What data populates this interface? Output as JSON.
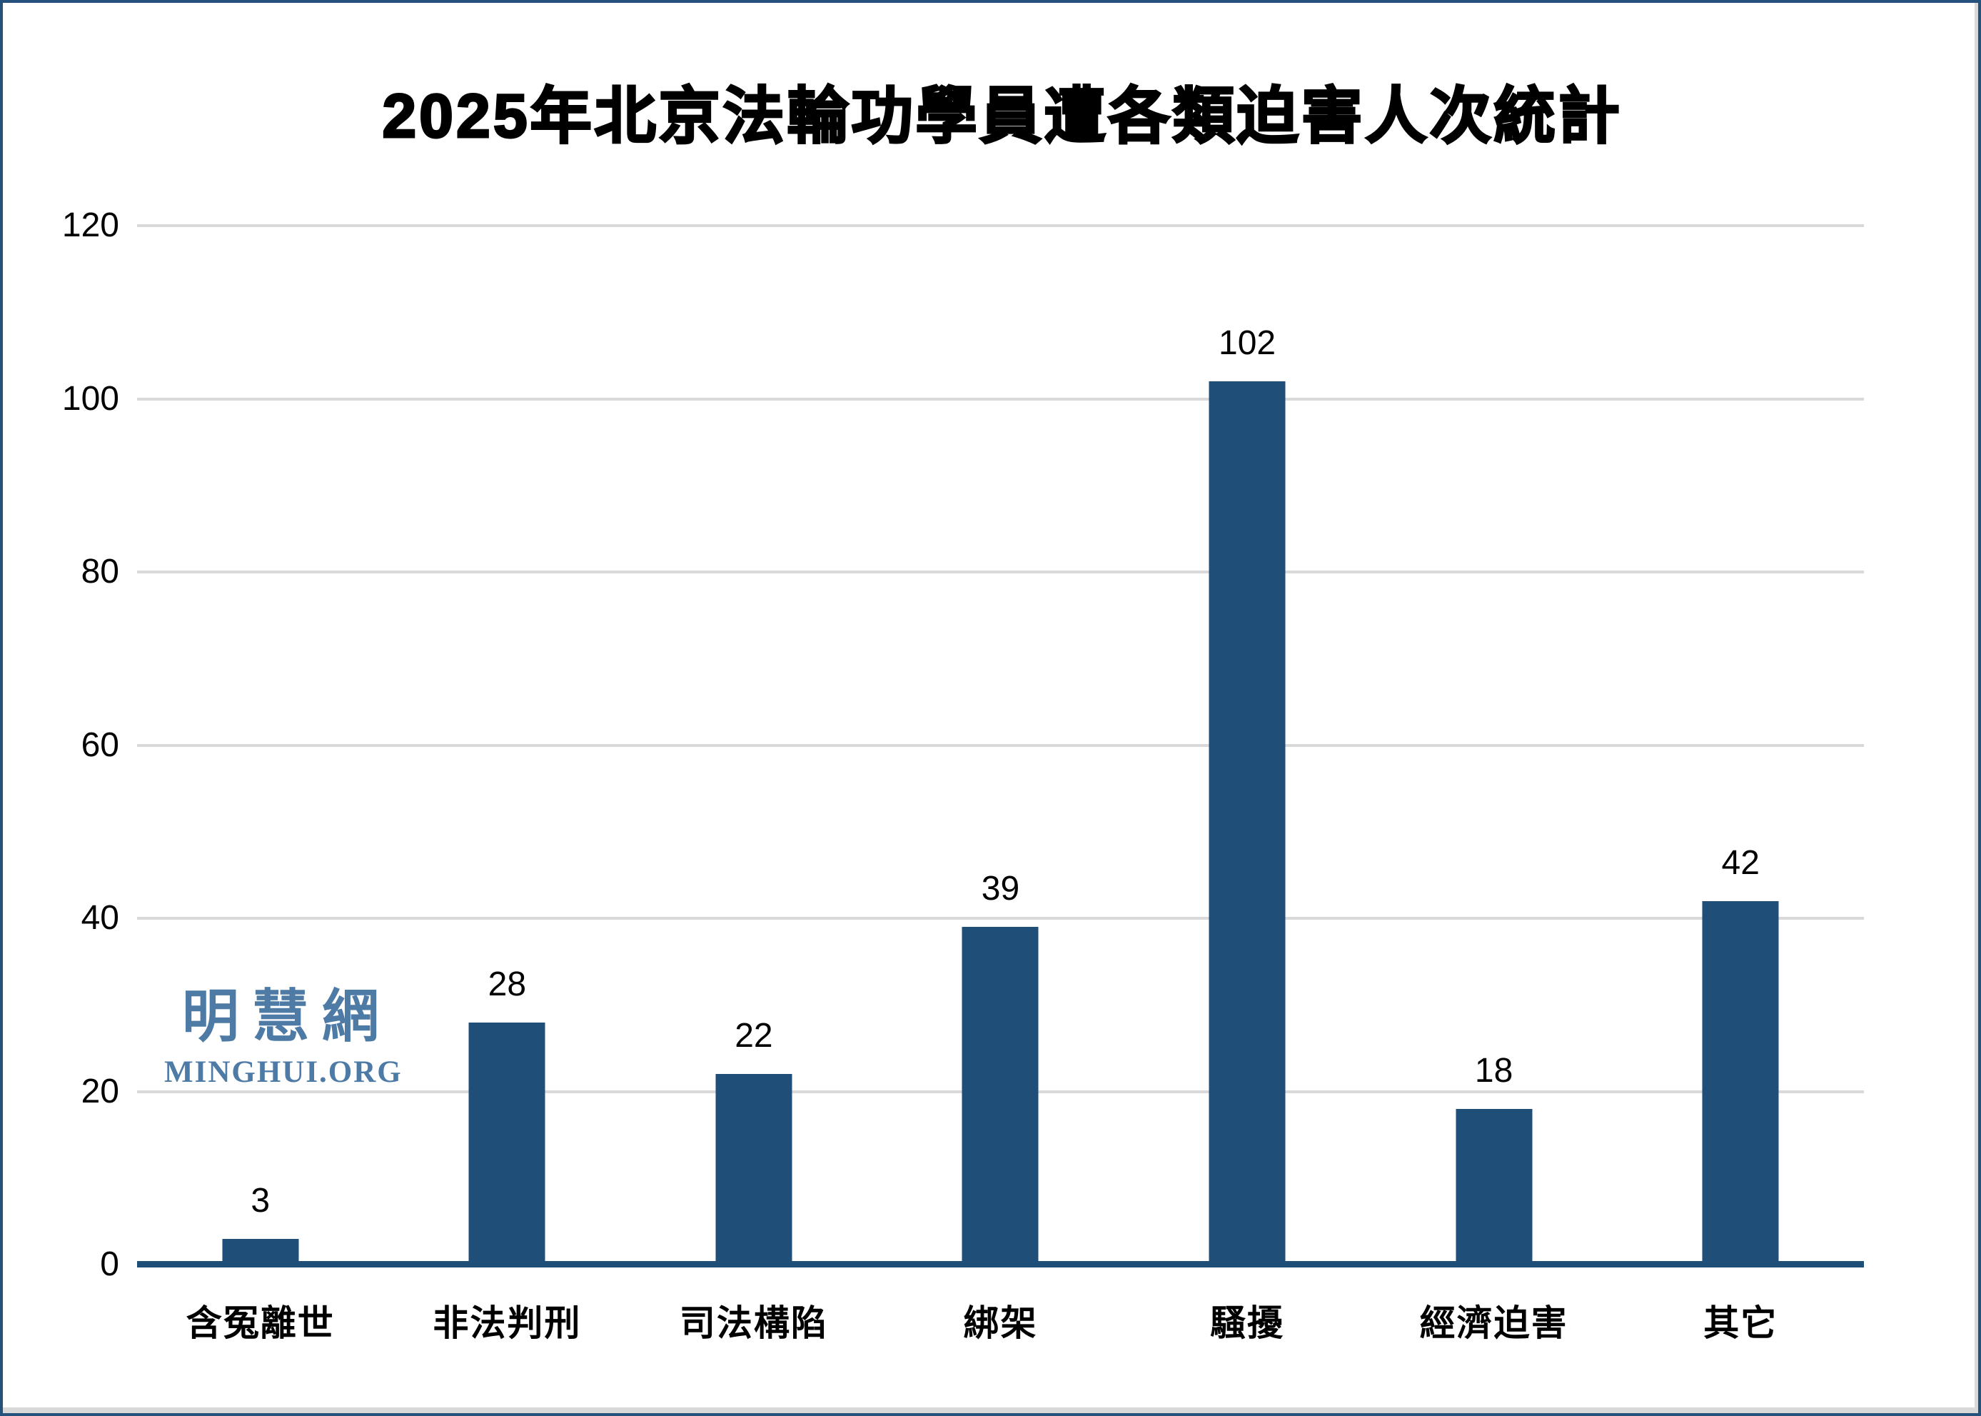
{
  "chart_data": {
    "type": "bar",
    "title": "2025年北京法輪功學員遭各類迫害人次統計",
    "categories": [
      "含冤離世",
      "非法判刑",
      "司法構陷",
      "綁架",
      "騷擾",
      "經濟迫害",
      "其它"
    ],
    "values": [
      3,
      28,
      22,
      39,
      102,
      18,
      42
    ],
    "xlabel": "",
    "ylabel": "",
    "ylim": [
      0,
      120
    ],
    "yticks": [
      0,
      20,
      40,
      60,
      80,
      100,
      120
    ],
    "grid": "horizontal gridlines on",
    "legend_position": "none",
    "colors": {
      "bar": "#1F4E79",
      "axis_line": "#1F4E79",
      "gridline": "#D9D9D9",
      "text": "#000000",
      "frame_border": "#24527C"
    }
  },
  "watermark": {
    "cjk_text": "明慧網",
    "latin_text": "MINGHUI.ORG",
    "color": "#4E7BA6"
  }
}
